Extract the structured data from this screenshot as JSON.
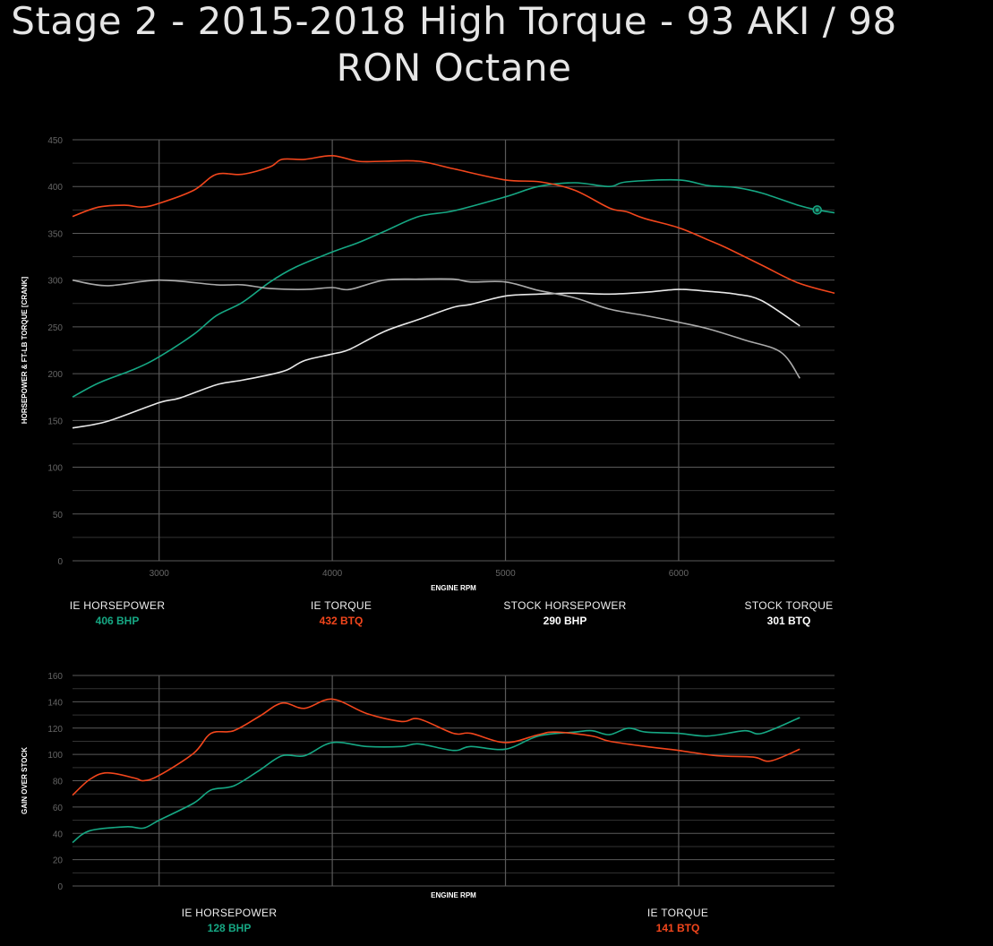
{
  "title": "Stage 2 - 2015-2018 High Torque - 93 AKI / 98 RON Octane",
  "colors": {
    "ie_hp": "#16a884",
    "ie_tq": "#f2461c",
    "stock_hp": "#e8e8e8",
    "stock_tq": "#aaaaaa"
  },
  "chart_data": [
    {
      "type": "line",
      "xlabel": "ENGINE RPM",
      "ylabel": "HORSEPOWER & FT-LB TORQUE [CRANK]",
      "xlim": [
        2500,
        6900
      ],
      "ylim": [
        0,
        450
      ],
      "xticks": [
        3000,
        4000,
        5000,
        6000
      ],
      "yticks": [
        0,
        50,
        100,
        150,
        200,
        250,
        300,
        350,
        400,
        450
      ],
      "grid": true,
      "series": [
        {
          "name": "IE HORSEPOWER",
          "color": "#16a884",
          "x": [
            2500,
            2650,
            2860,
            3000,
            3200,
            3330,
            3480,
            3640,
            3790,
            4000,
            4150,
            4300,
            4500,
            4700,
            5000,
            5190,
            5400,
            5600,
            5700,
            6000,
            6170,
            6330,
            6480,
            6690,
            6800,
            6900
          ],
          "y": [
            175,
            190,
            205,
            218,
            242,
            262,
            276,
            298,
            314,
            330,
            340,
            352,
            368,
            374,
            389,
            400,
            404,
            400,
            405,
            407,
            401,
            399,
            393,
            380,
            375,
            372
          ]
        },
        {
          "name": "IE TORQUE",
          "color": "#f2461c",
          "x": [
            2500,
            2650,
            2800,
            2900,
            3000,
            3200,
            3330,
            3480,
            3640,
            3710,
            3840,
            4000,
            4150,
            4300,
            4500,
            4700,
            5000,
            5200,
            5400,
            5600,
            5700,
            5800,
            6000,
            6170,
            6270,
            6480,
            6690,
            6900
          ],
          "y": [
            368,
            378,
            380,
            378,
            382,
            396,
            413,
            413,
            421,
            429,
            429,
            433,
            427,
            427,
            427,
            419,
            407,
            405,
            396,
            377,
            373,
            366,
            356,
            343,
            335,
            316,
            297,
            286
          ]
        },
        {
          "name": "STOCK HORSEPOWER",
          "color": "#e8e8e8",
          "x": [
            2500,
            2700,
            3000,
            3120,
            3330,
            3480,
            3640,
            3740,
            3840,
            4000,
            4100,
            4300,
            4500,
            4700,
            4800,
            5000,
            5190,
            5400,
            5600,
            5810,
            6000,
            6170,
            6330,
            6480,
            6700
          ],
          "y": [
            142,
            149,
            169,
            174,
            188,
            193,
            199,
            204,
            214,
            221,
            226,
            245,
            258,
            271,
            274,
            283,
            285,
            286,
            285,
            287,
            290,
            288,
            285,
            278,
            251
          ]
        },
        {
          "name": "STOCK TORQUE",
          "color": "#aaaaaa",
          "x": [
            2500,
            2700,
            3000,
            3330,
            3480,
            3640,
            3840,
            4000,
            4100,
            4300,
            4500,
            4700,
            4800,
            5000,
            5190,
            5400,
            5600,
            5810,
            6000,
            6170,
            6380,
            6590,
            6700
          ],
          "y": [
            300,
            294,
            300,
            295,
            295,
            291,
            290,
            292,
            290,
            300,
            301,
            301,
            298,
            298,
            289,
            281,
            269,
            262,
            255,
            248,
            236,
            223,
            195
          ]
        }
      ],
      "marker": {
        "series": "IE HORSEPOWER",
        "x": 6800,
        "y": 375
      }
    },
    {
      "type": "line",
      "xlabel": "ENGINE RPM",
      "ylabel": "GAIN OVER STOCK",
      "xlim": [
        2500,
        6900
      ],
      "ylim": [
        0,
        160
      ],
      "yticks": [
        0,
        20,
        40,
        60,
        80,
        100,
        120,
        140,
        160
      ],
      "grid": true,
      "series": [
        {
          "name": "IE HORSEPOWER",
          "color": "#16a884",
          "x": [
            2500,
            2600,
            2810,
            2910,
            3000,
            3200,
            3300,
            3430,
            3580,
            3710,
            3840,
            4000,
            4200,
            4400,
            4500,
            4700,
            4800,
            5000,
            5190,
            5400,
            5500,
            5600,
            5710,
            5810,
            6000,
            6170,
            6380,
            6480,
            6700
          ],
          "y": [
            33,
            42,
            45,
            44,
            50,
            63,
            73,
            76,
            88,
            99,
            99,
            109,
            106,
            106,
            108,
            103,
            106,
            104,
            114,
            117,
            118,
            115,
            120,
            117,
            116,
            114,
            118,
            116,
            128
          ]
        },
        {
          "name": "IE TORQUE",
          "color": "#f2461c",
          "x": [
            2500,
            2600,
            2700,
            2860,
            2910,
            3000,
            3200,
            3300,
            3430,
            3580,
            3710,
            3840,
            4000,
            4200,
            4400,
            4500,
            4700,
            4800,
            5000,
            5190,
            5290,
            5500,
            5600,
            5810,
            6000,
            6220,
            6430,
            6530,
            6700
          ],
          "y": [
            69,
            81,
            86,
            82,
            80,
            84,
            101,
            116,
            118,
            129,
            139,
            135,
            142,
            131,
            125,
            127,
            116,
            116,
            109,
            115,
            117,
            114,
            110,
            106,
            103,
            99,
            98,
            95,
            104
          ]
        }
      ]
    }
  ],
  "legend_top": [
    {
      "label": "IE HORSEPOWER",
      "value": "406 BHP",
      "color": "#16a884"
    },
    {
      "label": "IE TORQUE",
      "value": "432 BTQ",
      "color": "#f2461c"
    },
    {
      "label": "STOCK HORSEPOWER",
      "value": "290 BHP",
      "color": "#ffffff"
    },
    {
      "label": "STOCK TORQUE",
      "value": "301 BTQ",
      "color": "#ffffff"
    }
  ],
  "legend_bottom": [
    {
      "label": "IE HORSEPOWER",
      "value": "128 BHP",
      "color": "#16a884"
    },
    {
      "label": "IE TORQUE",
      "value": "141 BTQ",
      "color": "#f2461c"
    }
  ]
}
